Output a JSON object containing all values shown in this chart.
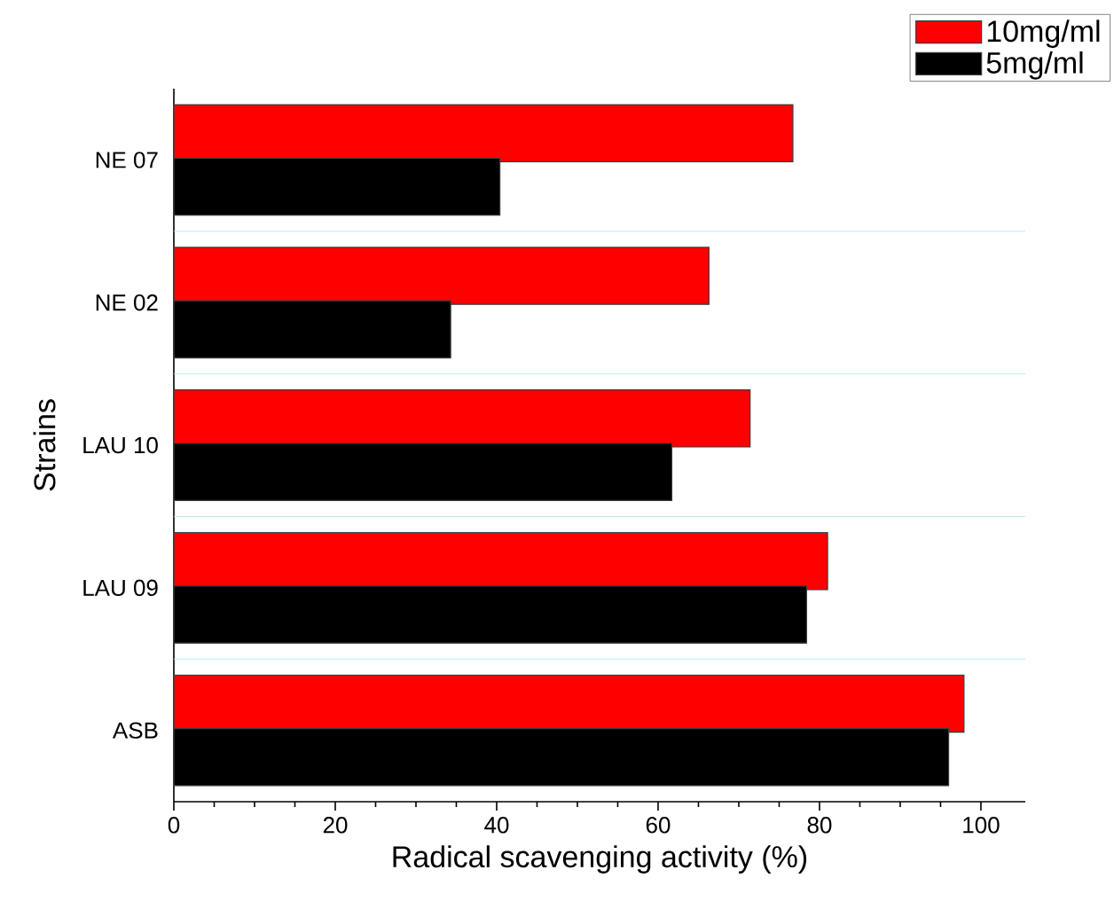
{
  "chart_data": {
    "type": "bar",
    "orientation": "horizontal",
    "xlabel": "Radical scavenging activity (%)",
    "ylabel": "Strains",
    "categories": [
      "NE 07",
      "NE 02",
      "LAU 10",
      "LAU 09",
      "ASB"
    ],
    "series": [
      {
        "name": "10mg/ml",
        "color": "#ff0000",
        "values": [
          76.7,
          66.3,
          71.4,
          81.0,
          97.9
        ]
      },
      {
        "name": "5mg/ml",
        "color": "#000000",
        "values": [
          40.4,
          34.3,
          61.7,
          78.4,
          96.0
        ]
      }
    ],
    "xlim": [
      0,
      105.5
    ],
    "xticks": [
      0,
      20,
      40,
      60,
      80,
      100
    ],
    "grid": "y",
    "legend": "top right"
  }
}
